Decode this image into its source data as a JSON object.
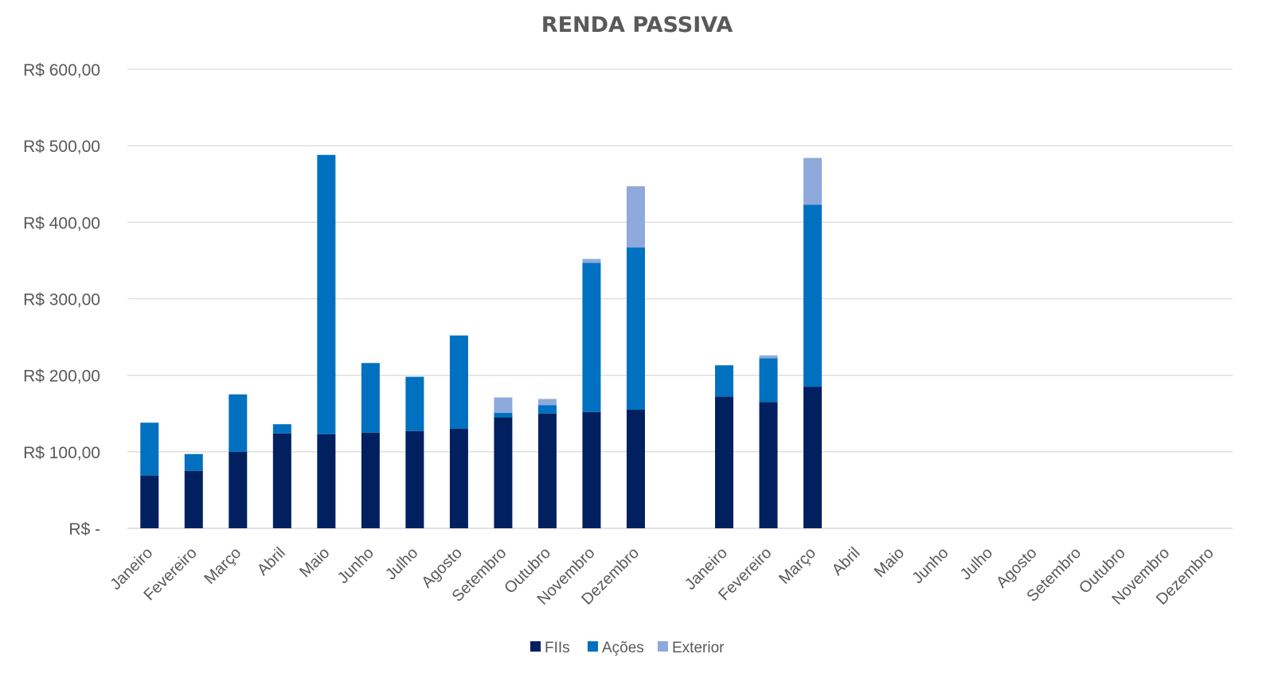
{
  "chart_data": {
    "type": "bar",
    "stacked": true,
    "title": "RENDA PASSIVA",
    "xlabel": "",
    "ylabel": "",
    "ylim": [
      0,
      600
    ],
    "yticks": [
      0,
      100,
      200,
      300,
      400,
      500,
      600
    ],
    "ytick_labels": [
      "R$ -",
      "R$ 100,00",
      "R$ 200,00",
      "R$ 300,00",
      "R$ 400,00",
      "R$ 500,00",
      "R$ 600,00"
    ],
    "grid": true,
    "legend_position": "bottom",
    "categories": [
      "Janeiro",
      "Fevereiro",
      "Março",
      "Abril",
      "Maio",
      "Junho",
      "Julho",
      "Agosto",
      "Setembro",
      "Outubro",
      "Novembro",
      "Dezembro",
      "",
      "Janeiro",
      "Fevereiro",
      "Março",
      "Abril",
      "Maio",
      "Junho",
      "Julho",
      "Agosto",
      "Setembro",
      "Outubro",
      "Novembro",
      "Dezembro"
    ],
    "series": [
      {
        "name": "FIIs",
        "color": "#002060",
        "values": [
          69,
          75,
          100,
          124,
          123,
          125,
          127,
          130,
          145,
          150,
          152,
          155,
          null,
          172,
          165,
          185,
          null,
          null,
          null,
          null,
          null,
          null,
          null,
          null,
          null
        ]
      },
      {
        "name": "Ações",
        "color": "#0070C0",
        "values": [
          69,
          22,
          75,
          12,
          365,
          91,
          71,
          122,
          6,
          11,
          195,
          212,
          null,
          41,
          57,
          238,
          null,
          null,
          null,
          null,
          null,
          null,
          null,
          null,
          null
        ]
      },
      {
        "name": "Exterior",
        "color": "#8EA9DB",
        "values": [
          0,
          0,
          0,
          0,
          0,
          0,
          0,
          0,
          20,
          8,
          5,
          80,
          null,
          0,
          4,
          61,
          null,
          null,
          null,
          null,
          null,
          null,
          null,
          null,
          null
        ]
      }
    ]
  }
}
